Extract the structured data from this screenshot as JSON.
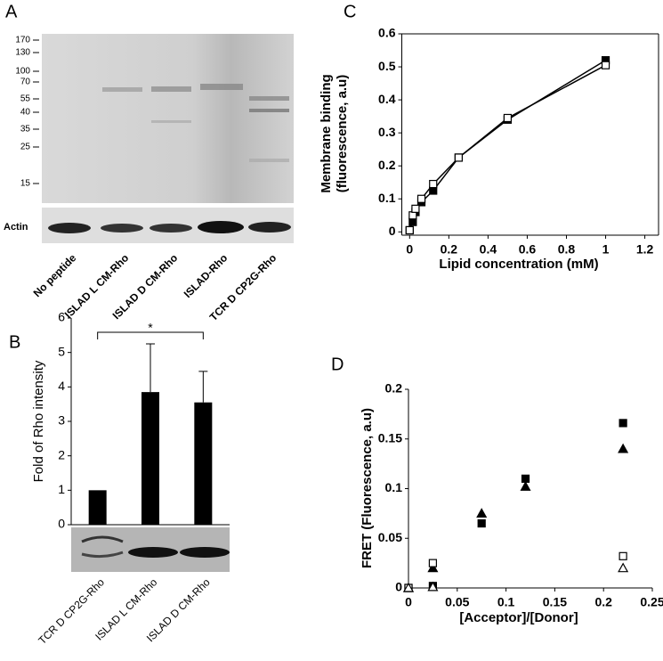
{
  "gel": {
    "panel_label": "A",
    "markers": [
      "170",
      "130",
      "100",
      "70",
      "55",
      "40",
      "35",
      "25",
      "15"
    ],
    "loading_label": "Actin",
    "lanes": [
      "No peptide",
      "ISLAD L CM-Rho",
      "ISLAD D CM-Rho",
      "ISLAD-Rho",
      "TCR D CP2G-Rho"
    ]
  },
  "chart_data": [
    {
      "type": "bar",
      "panel_label": "B",
      "ylabel": "Fold of Rho intensity",
      "categories": [
        "TCR D CP2G-Rho",
        "ISLAD L CM-Rho",
        "ISLAD D CM-Rho"
      ],
      "values": [
        1.0,
        3.85,
        3.55
      ],
      "errors": [
        0,
        1.4,
        0.9
      ],
      "color": "#000000",
      "significance_label": "*",
      "ylim": [
        0,
        6
      ],
      "yticks": [
        0,
        1,
        2,
        3,
        4,
        5,
        6
      ]
    },
    {
      "type": "line",
      "panel_label": "C",
      "ylabel": [
        "Membrane binding",
        "(fluorescence, a.u)"
      ],
      "xlabel": "Lipid concentration (mM)",
      "x": [
        0,
        0.016,
        0.03,
        0.06,
        0.12,
        0.25,
        0.5,
        1.0
      ],
      "series": [
        {
          "color": "#000000",
          "marker": "square",
          "filled": true,
          "values": [
            0.005,
            0.03,
            0.06,
            0.09,
            0.125,
            0.225,
            0.34,
            0.52
          ]
        },
        {
          "color": "#000000",
          "marker": "square",
          "filled": false,
          "values": [
            0.005,
            0.05,
            0.07,
            0.1,
            0.145,
            0.225,
            0.345,
            0.505
          ]
        }
      ],
      "xlim": [
        -0.04,
        1.27
      ],
      "xticks": [
        0,
        0.2,
        0.4,
        0.6,
        0.8,
        1,
        1.2
      ],
      "ylim": [
        -0.01,
        0.6
      ],
      "yticks": [
        0,
        0.1,
        0.2,
        0.3,
        0.4,
        0.5,
        0.6
      ],
      "frame": true
    },
    {
      "type": "scatter",
      "panel_label": "D",
      "ylabel": "FRET (Fluorescence,  a.u)",
      "xlabel": "[Acceptor]/[Donor]",
      "series": [
        {
          "color": "#000000",
          "marker": "square",
          "filled": true,
          "x": [
            0,
            0.025,
            0.075,
            0.12,
            0.22
          ],
          "values": [
            0,
            0.002,
            0.065,
            0.11,
            0.166
          ]
        },
        {
          "color": "#000000",
          "marker": "triangle",
          "filled": true,
          "x": [
            0,
            0.025,
            0.075,
            0.12,
            0.22
          ],
          "values": [
            0,
            0.02,
            0.075,
            0.102,
            0.14
          ]
        },
        {
          "color": "#000000",
          "marker": "square",
          "filled": false,
          "x": [
            0,
            0.025,
            0.22
          ],
          "values": [
            0,
            0.025,
            0.032
          ]
        },
        {
          "color": "#000000",
          "marker": "triangle",
          "filled": false,
          "x": [
            0,
            0.025,
            0.22
          ],
          "values": [
            0,
            0.001,
            0.02
          ]
        }
      ],
      "xlim": [
        0,
        0.25
      ],
      "xticks": [
        0,
        0.05,
        0.1,
        0.15,
        0.2,
        0.25
      ],
      "ylim": [
        0,
        0.2
      ],
      "yticks": [
        0,
        0.05,
        0.1,
        0.15,
        0.2
      ],
      "frame": false
    }
  ]
}
